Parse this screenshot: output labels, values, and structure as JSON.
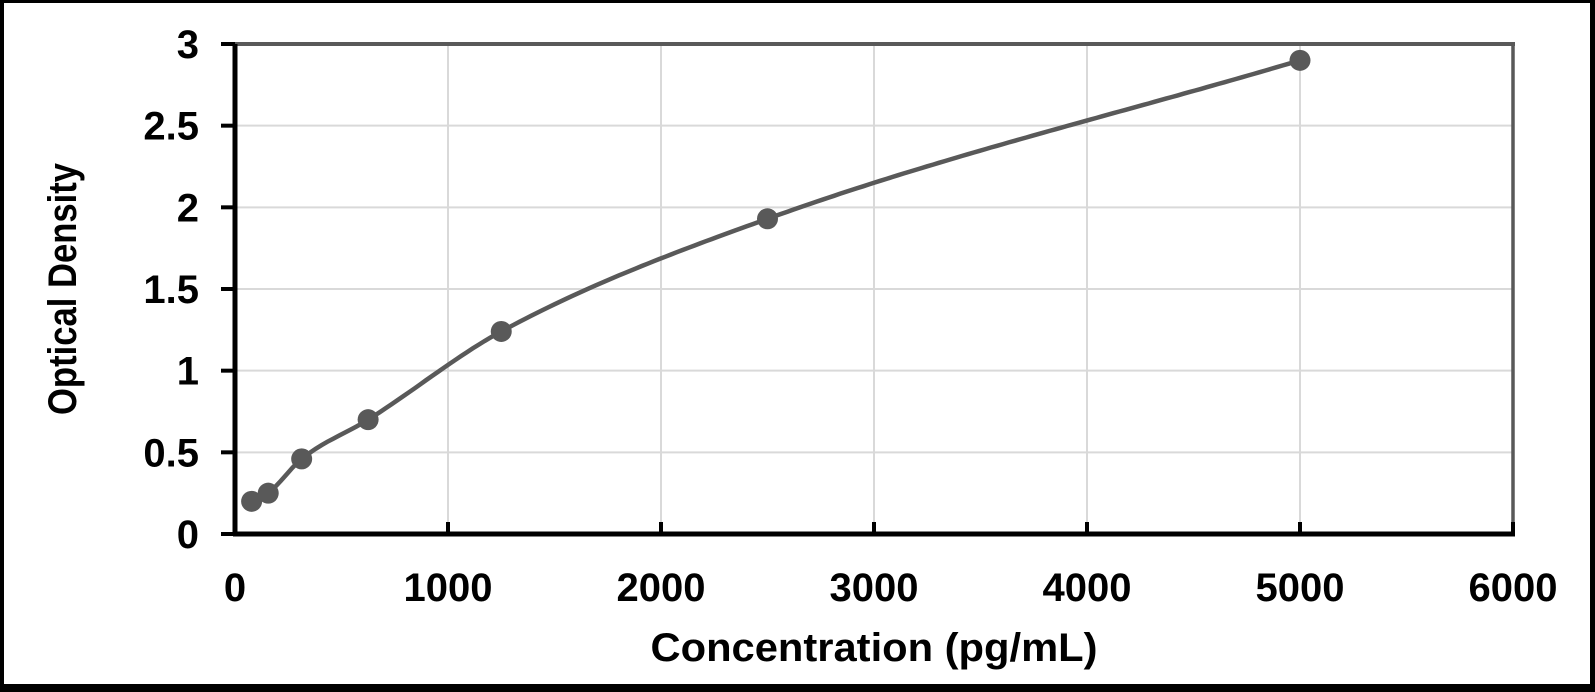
{
  "figure": {
    "background": "#ffffff",
    "border_color": "#000000"
  },
  "chart_data": {
    "type": "scatter",
    "title": "",
    "xlabel": "Concentration (pg/mL)",
    "ylabel": "Optical Density",
    "x": [
      78,
      156,
      313,
      625,
      1250,
      2500,
      5000
    ],
    "y": [
      0.2,
      0.25,
      0.46,
      0.7,
      1.24,
      1.93,
      2.9
    ],
    "fit": "smooth sigmoidal standard curve through all points",
    "xlim": [
      0,
      6000
    ],
    "ylim": [
      0,
      3
    ],
    "x_ticks": [
      0,
      1000,
      2000,
      3000,
      4000,
      5000,
      6000
    ],
    "x_tick_labels": [
      "0",
      "1000",
      "2000",
      "3000",
      "4000",
      "5000",
      "6000"
    ],
    "y_ticks": [
      0,
      0.5,
      1,
      1.5,
      2,
      2.5,
      3
    ],
    "y_tick_labels": [
      "0",
      "0.5",
      "1",
      "1.5",
      "2",
      "2.5",
      "3"
    ],
    "grid": true,
    "legend": "none",
    "colors": {
      "curve": "#595959",
      "marker": "#595959",
      "gridline": "#d9d9d9",
      "axis": "#000000",
      "frame": "#595959",
      "text": "#000000"
    }
  }
}
